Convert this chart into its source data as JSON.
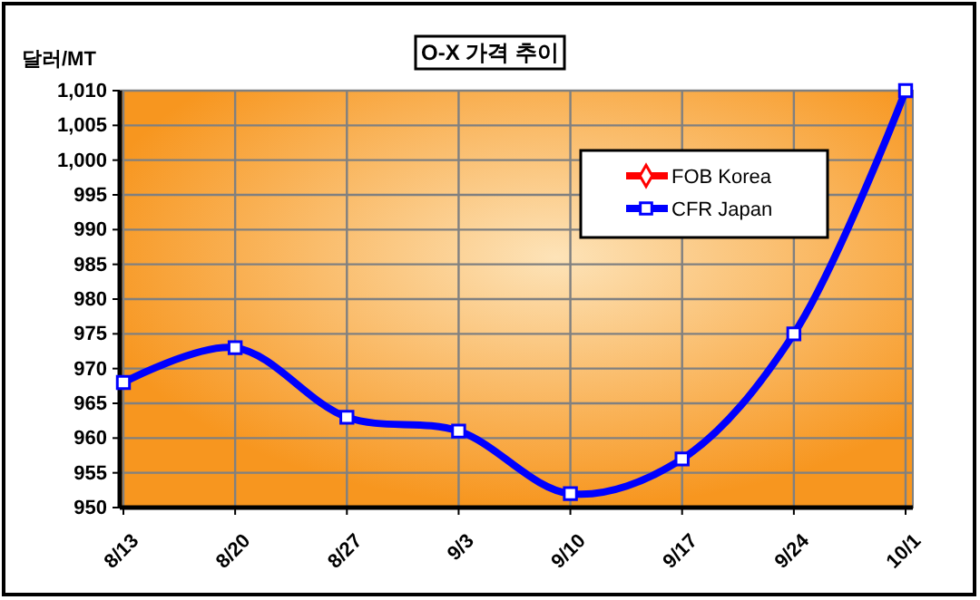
{
  "chart_data": {
    "type": "line",
    "title": "O-X 가격 추이",
    "ylabel": "달러/MT",
    "categories": [
      "8/13",
      "8/20",
      "8/27",
      "9/3",
      "9/10",
      "9/17",
      "9/24",
      "10/1"
    ],
    "series": [
      {
        "name": "FOB Korea",
        "color": "#ff0000",
        "marker": "diamond",
        "values": [
          null,
          null,
          null,
          null,
          null,
          null,
          null,
          null
        ]
      },
      {
        "name": "CFR Japan",
        "color": "#0000ff",
        "marker": "square",
        "values": [
          968,
          973,
          963,
          961,
          952,
          957,
          975,
          1010
        ]
      }
    ],
    "ylim": [
      950,
      1010
    ],
    "yticks": [
      950,
      955,
      960,
      965,
      970,
      975,
      980,
      985,
      990,
      995,
      {
        "value": 1000,
        "label": "1,000"
      },
      {
        "value": 1005,
        "label": "1,005"
      },
      {
        "value": 1010,
        "label": "1,010"
      }
    ],
    "grid": true,
    "legend": "top right"
  }
}
